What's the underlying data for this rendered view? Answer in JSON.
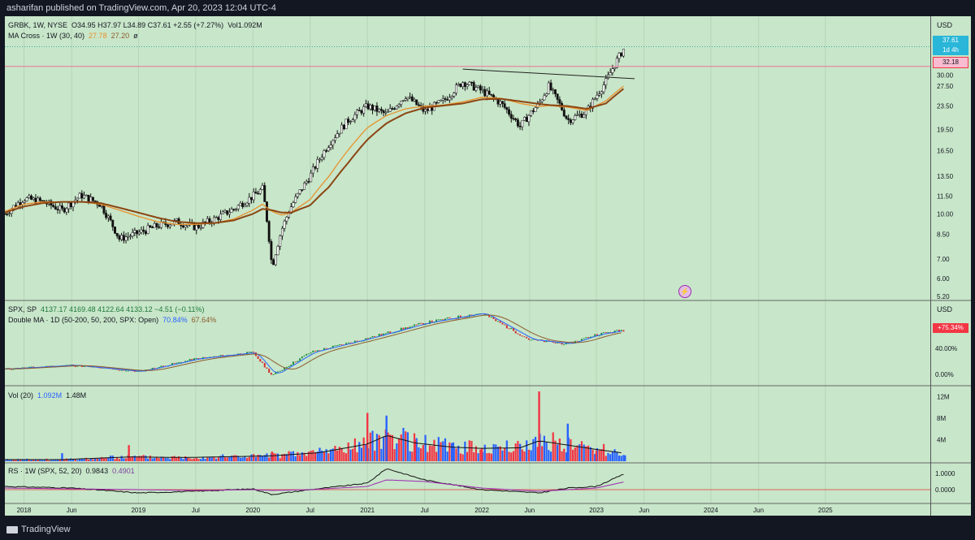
{
  "header": {
    "published": "asharifan published on TradingView.com, Apr 20, 2023 12:04 UTC-4"
  },
  "footer": {
    "brand": "TradingView"
  },
  "panes": {
    "main": {
      "symbol": "GRBK, 1W, NYSE",
      "ohlc": "O34.95 H37.97 L34.89 C37.61 +2.55 (+7.27%)",
      "vol": "Vol1.092M",
      "indicator": "MA Cross · 1W (30, 40)",
      "ma_fast": "27.78",
      "ma_slow": "27.20",
      "extra": "ø",
      "currency": "USD",
      "last_price": "37.61",
      "countdown": "1d 4h",
      "level_price": "32.18",
      "price_ticks": [
        "30.00",
        "27.50",
        "23.50",
        "19.50",
        "16.50",
        "13.50",
        "11.50",
        "10.00",
        "8.50",
        "7.00",
        "6.00",
        "5.20"
      ]
    },
    "spx": {
      "symbol": "SPX, SP",
      "ohlc": "4137.17 4169.48 4122.64 4133.12 −4.51 (−0.11%)",
      "indicator": "Double MA · 1D (50-200, 50, 200, SPX: Open)",
      "v1": "70.84%",
      "v2": "67.64%",
      "currency": "USD",
      "badge": "+75.34%",
      "ticks": [
        "40.00%",
        "0.00%"
      ]
    },
    "volume": {
      "label": "Vol (20)",
      "v1": "1.092M",
      "v2": "1.48M",
      "ticks": [
        "12M",
        "8M",
        "4M"
      ]
    },
    "rs": {
      "label": "RS · 1W (SPX, 52, 20)",
      "v1": "0.9843",
      "v2": "0.4901",
      "ticks": [
        "1.0000",
        "0.0000"
      ]
    }
  },
  "time_axis": {
    "labels": [
      "2018",
      "Jun",
      "2019",
      "Jul",
      "2020",
      "Jul",
      "2021",
      "Jul",
      "2022",
      "Jun",
      "2023",
      "Jun",
      "2024",
      "Jun",
      "2025"
    ]
  },
  "colors": {
    "background": "#c8e6c9",
    "up": "#2962ff",
    "down": "#f23645",
    "ma_fast": "#e8922c",
    "ma_slow": "#8b4513",
    "rs_line": "#9c27b0",
    "badge_blue": "#29b6d8",
    "badge_red": "#f23645"
  },
  "chart_data": [
    {
      "type": "line",
      "pane": "GRBK weekly price (log scale)",
      "x": [
        "2017-11",
        "2018-01",
        "2018-03",
        "2018-05",
        "2018-07",
        "2018-09",
        "2018-11",
        "2019-01",
        "2019-03",
        "2019-05",
        "2019-07",
        "2019-09",
        "2019-11",
        "2020-01",
        "2020-02",
        "2020-03",
        "2020-04",
        "2020-05",
        "2020-07",
        "2020-09",
        "2020-11",
        "2021-01",
        "2021-03",
        "2021-05",
        "2021-07",
        "2021-09",
        "2021-11",
        "2022-01",
        "2022-03",
        "2022-05",
        "2022-07",
        "2022-08",
        "2022-10",
        "2022-12",
        "2023-02",
        "2023-04"
      ],
      "series": [
        {
          "name": "GRBK",
          "values": [
            10.0,
            11.3,
            11.0,
            10.3,
            11.6,
            10.8,
            8.2,
            8.6,
            9.1,
            9.4,
            9.0,
            9.6,
            10.4,
            11.5,
            12.2,
            6.5,
            8.8,
            10.6,
            13.5,
            17.5,
            21.0,
            23.5,
            22.0,
            25.5,
            22.5,
            24.5,
            28.5,
            26.5,
            24.0,
            20.0,
            24.0,
            27.5,
            21.0,
            22.5,
            28.5,
            37.61
          ]
        },
        {
          "name": "MA 30",
          "values": [
            10.2,
            10.8,
            11.0,
            11.0,
            11.0,
            10.8,
            10.3,
            9.8,
            9.4,
            9.2,
            9.2,
            9.3,
            9.6,
            10.3,
            10.8,
            10.2,
            9.9,
            10.1,
            11.2,
            13.5,
            16.6,
            19.8,
            21.8,
            23.0,
            23.5,
            23.7,
            24.3,
            25.2,
            25.0,
            24.0,
            23.4,
            23.6,
            23.3,
            22.7,
            24.5,
            27.78
          ]
        },
        {
          "name": "MA 40",
          "values": [
            10.1,
            10.6,
            10.9,
            11.0,
            11.0,
            10.9,
            10.5,
            10.1,
            9.7,
            9.4,
            9.3,
            9.3,
            9.5,
            10.0,
            10.4,
            10.3,
            10.1,
            10.1,
            10.7,
            12.4,
            15.0,
            18.0,
            20.5,
            22.2,
            23.2,
            23.6,
            24.0,
            24.8,
            24.9,
            24.4,
            23.9,
            23.7,
            23.5,
            23.0,
            24.0,
            27.2
          ]
        }
      ],
      "ylim": [
        5.2,
        40
      ],
      "scale": "log",
      "levels": [
        32.18,
        37.61
      ]
    },
    {
      "type": "line",
      "pane": "SPX",
      "x": [
        "2017-11",
        "2018-06",
        "2019-01",
        "2019-07",
        "2020-01",
        "2020-03",
        "2020-07",
        "2021-01",
        "2021-07",
        "2022-01",
        "2022-06",
        "2022-10",
        "2023-01",
        "2023-04"
      ],
      "series": [
        {
          "name": "SPX",
          "values": [
            2600,
            2750,
            2500,
            3000,
            3250,
            2350,
            3250,
            3800,
            4400,
            4790,
            3750,
            3580,
            3950,
            4133.12
          ]
        }
      ]
    },
    {
      "type": "bar",
      "pane": "Vol (20)",
      "x": [
        "2018-05",
        "2018-12",
        "2019-06",
        "2020-03",
        "2020-08",
        "2021-01",
        "2021-03",
        "2021-06",
        "2021-10",
        "2022-01",
        "2022-05",
        "2022-07",
        "2022-10",
        "2023-01",
        "2023-04"
      ],
      "series": [
        {
          "name": "Vol",
          "values": [
            1.5,
            3.0,
            0.6,
            1.8,
            2.5,
            9.0,
            8.5,
            4.0,
            3.5,
            2.5,
            3.2,
            13.0,
            7.0,
            2.0,
            1.092
          ]
        },
        {
          "name": "Vol MA",
          "values": [
            0.3,
            0.8,
            0.7,
            1.0,
            1.6,
            3.2,
            4.8,
            3.4,
            2.6,
            2.4,
            2.5,
            3.8,
            3.0,
            2.2,
            1.48
          ]
        }
      ],
      "ylim": [
        0,
        13
      ]
    },
    {
      "type": "line",
      "pane": "RS",
      "x": [
        "2017-11",
        "2018-06",
        "2019-01",
        "2019-07",
        "2020-01",
        "2020-03",
        "2020-07",
        "2021-01",
        "2021-03",
        "2021-07",
        "2022-01",
        "2022-07",
        "2022-10",
        "2023-01",
        "2023-04"
      ],
      "series": [
        {
          "name": "RS",
          "values": [
            0.2,
            0.1,
            -0.2,
            -0.1,
            0.05,
            -0.3,
            0.0,
            0.4,
            1.3,
            0.6,
            0.0,
            -0.2,
            0.1,
            0.2,
            0.9843
          ]
        },
        {
          "name": "RS MA",
          "values": [
            0.1,
            0.05,
            0.0,
            -0.05,
            0.0,
            -0.05,
            0.0,
            0.2,
            0.6,
            0.5,
            0.1,
            -0.1,
            0.0,
            0.1,
            0.4901
          ]
        }
      ],
      "ylim": [
        -0.6,
        1.4
      ]
    }
  ]
}
